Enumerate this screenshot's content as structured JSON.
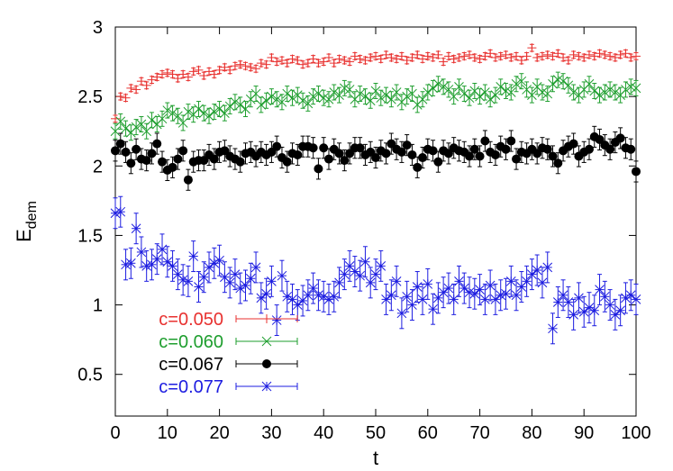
{
  "chart_data": {
    "type": "scatter",
    "xlabel": "t",
    "ylabel_main": "E",
    "ylabel_sub": "dem",
    "xlim": [
      0,
      100
    ],
    "ylim": [
      0.2,
      3.0
    ],
    "x_ticks": [
      0,
      10,
      20,
      30,
      40,
      50,
      60,
      70,
      80,
      90,
      100
    ],
    "y_ticks": [
      0.5,
      1,
      1.5,
      2,
      2.5,
      3
    ],
    "x_tick_labels": [
      "0",
      "10",
      "20",
      "30",
      "40",
      "50",
      "60",
      "70",
      "80",
      "90",
      "100"
    ],
    "y_tick_labels": [
      "0.5",
      "1",
      "1.5",
      "2",
      "2.5",
      "3"
    ],
    "grid": false,
    "legend_position": "bottom-left",
    "series": [
      {
        "name": "c=0.050",
        "color": "#e8312f",
        "marker": "plus",
        "err": 0.025,
        "values": [
          2.34,
          2.5,
          2.49,
          2.56,
          2.55,
          2.61,
          2.58,
          2.62,
          2.64,
          2.66,
          2.67,
          2.66,
          2.63,
          2.66,
          2.64,
          2.68,
          2.69,
          2.65,
          2.68,
          2.66,
          2.69,
          2.71,
          2.69,
          2.72,
          2.73,
          2.72,
          2.71,
          2.7,
          2.74,
          2.73,
          2.78,
          2.75,
          2.76,
          2.74,
          2.77,
          2.76,
          2.73,
          2.74,
          2.77,
          2.74,
          2.75,
          2.78,
          2.74,
          2.77,
          2.76,
          2.75,
          2.79,
          2.77,
          2.76,
          2.78,
          2.79,
          2.77,
          2.8,
          2.78,
          2.77,
          2.79,
          2.76,
          2.78,
          2.8,
          2.77,
          2.79,
          2.78,
          2.8,
          2.75,
          2.79,
          2.77,
          2.78,
          2.79,
          2.8,
          2.78,
          2.77,
          2.79,
          2.81,
          2.78,
          2.79,
          2.8,
          2.78,
          2.79,
          2.76,
          2.79,
          2.85,
          2.78,
          2.79,
          2.8,
          2.79,
          2.81,
          2.78,
          2.76,
          2.8,
          2.79,
          2.78,
          2.8,
          2.79,
          2.81,
          2.8,
          2.79,
          2.78,
          2.8,
          2.81,
          2.78,
          2.79
        ]
      },
      {
        "name": "c=0.060",
        "color": "#1e9e2e",
        "marker": "x",
        "err": 0.055,
        "values": [
          2.25,
          2.32,
          2.27,
          2.24,
          2.28,
          2.3,
          2.25,
          2.33,
          2.3,
          2.34,
          2.4,
          2.38,
          2.36,
          2.31,
          2.39,
          2.37,
          2.41,
          2.38,
          2.36,
          2.39,
          2.41,
          2.38,
          2.43,
          2.46,
          2.44,
          2.41,
          2.48,
          2.52,
          2.44,
          2.47,
          2.5,
          2.48,
          2.46,
          2.52,
          2.49,
          2.51,
          2.47,
          2.45,
          2.5,
          2.52,
          2.49,
          2.48,
          2.53,
          2.51,
          2.56,
          2.55,
          2.48,
          2.52,
          2.5,
          2.47,
          2.54,
          2.49,
          2.51,
          2.48,
          2.53,
          2.46,
          2.5,
          2.52,
          2.44,
          2.48,
          2.53,
          2.56,
          2.59,
          2.57,
          2.55,
          2.5,
          2.57,
          2.52,
          2.49,
          2.54,
          2.5,
          2.53,
          2.48,
          2.51,
          2.57,
          2.54,
          2.53,
          2.59,
          2.61,
          2.55,
          2.51,
          2.57,
          2.53,
          2.52,
          2.59,
          2.62,
          2.61,
          2.58,
          2.53,
          2.51,
          2.55,
          2.59,
          2.54,
          2.51,
          2.53,
          2.55,
          2.53,
          2.51,
          2.55,
          2.57,
          2.56
        ]
      },
      {
        "name": "c=0.067",
        "color": "#000000",
        "marker": "dot",
        "err": 0.075,
        "values": [
          2.11,
          2.16,
          2.1,
          2.02,
          2.12,
          2.05,
          2.04,
          2.09,
          2.16,
          2.03,
          1.97,
          1.99,
          2.05,
          2.11,
          1.9,
          2.03,
          2.04,
          2.04,
          2.08,
          2.05,
          2.1,
          2.11,
          2.07,
          2.05,
          2.03,
          2.09,
          2.1,
          2.07,
          2.1,
          2.08,
          2.1,
          2.14,
          2.06,
          2.03,
          2.09,
          2.08,
          2.14,
          2.14,
          2.13,
          1.98,
          2.13,
          2.05,
          2.12,
          2.09,
          2.04,
          2.09,
          2.13,
          2.13,
          2.08,
          2.1,
          2.06,
          2.11,
          2.09,
          2.16,
          2.12,
          2.1,
          2.15,
          2.08,
          1.99,
          2.06,
          2.12,
          2.11,
          2.03,
          2.11,
          2.09,
          2.13,
          2.11,
          2.1,
          2.07,
          2.12,
          2.07,
          2.18,
          2.1,
          2.08,
          2.14,
          2.12,
          2.18,
          2.05,
          2.1,
          2.09,
          2.12,
          2.09,
          2.13,
          2.12,
          2.07,
          2.02,
          2.11,
          2.14,
          2.16,
          2.07,
          2.1,
          2.12,
          2.21,
          2.19,
          2.15,
          2.12,
          2.17,
          2.2,
          2.13,
          2.12,
          1.96
        ]
      },
      {
        "name": "c=0.077",
        "color": "#1c1ce0",
        "marker": "star",
        "err": 0.11,
        "values": [
          1.66,
          1.67,
          1.29,
          1.3,
          1.55,
          1.38,
          1.28,
          1.29,
          1.33,
          1.4,
          1.31,
          1.28,
          1.22,
          1.18,
          1.17,
          1.35,
          1.13,
          1.2,
          1.27,
          1.3,
          1.32,
          1.2,
          1.16,
          1.22,
          1.12,
          1.14,
          1.19,
          1.27,
          1.05,
          1.08,
          1.17,
          0.89,
          1.21,
          1.06,
          1.04,
          1.0,
          1.03,
          1.07,
          1.12,
          1.07,
          1.06,
          1.04,
          1.06,
          1.16,
          1.22,
          1.28,
          1.24,
          1.21,
          1.31,
          1.16,
          1.22,
          1.28,
          1.04,
          1.07,
          1.17,
          0.94,
          1.06,
          1.0,
          1.13,
          1.04,
          1.15,
          0.97,
          1.05,
          1.09,
          1.12,
          1.04,
          1.17,
          1.12,
          1.09,
          1.08,
          1.11,
          1.04,
          1.14,
          1.04,
          1.07,
          1.08,
          1.17,
          1.07,
          1.13,
          1.17,
          1.22,
          1.25,
          1.16,
          1.27,
          0.83,
          1.02,
          1.07,
          1.02,
          0.93,
          1.05,
          0.95,
          0.98,
          0.96,
          1.11,
          1.06,
          1.0,
          0.93,
          0.96,
          1.05,
          1.07,
          1.04
        ]
      }
    ]
  }
}
